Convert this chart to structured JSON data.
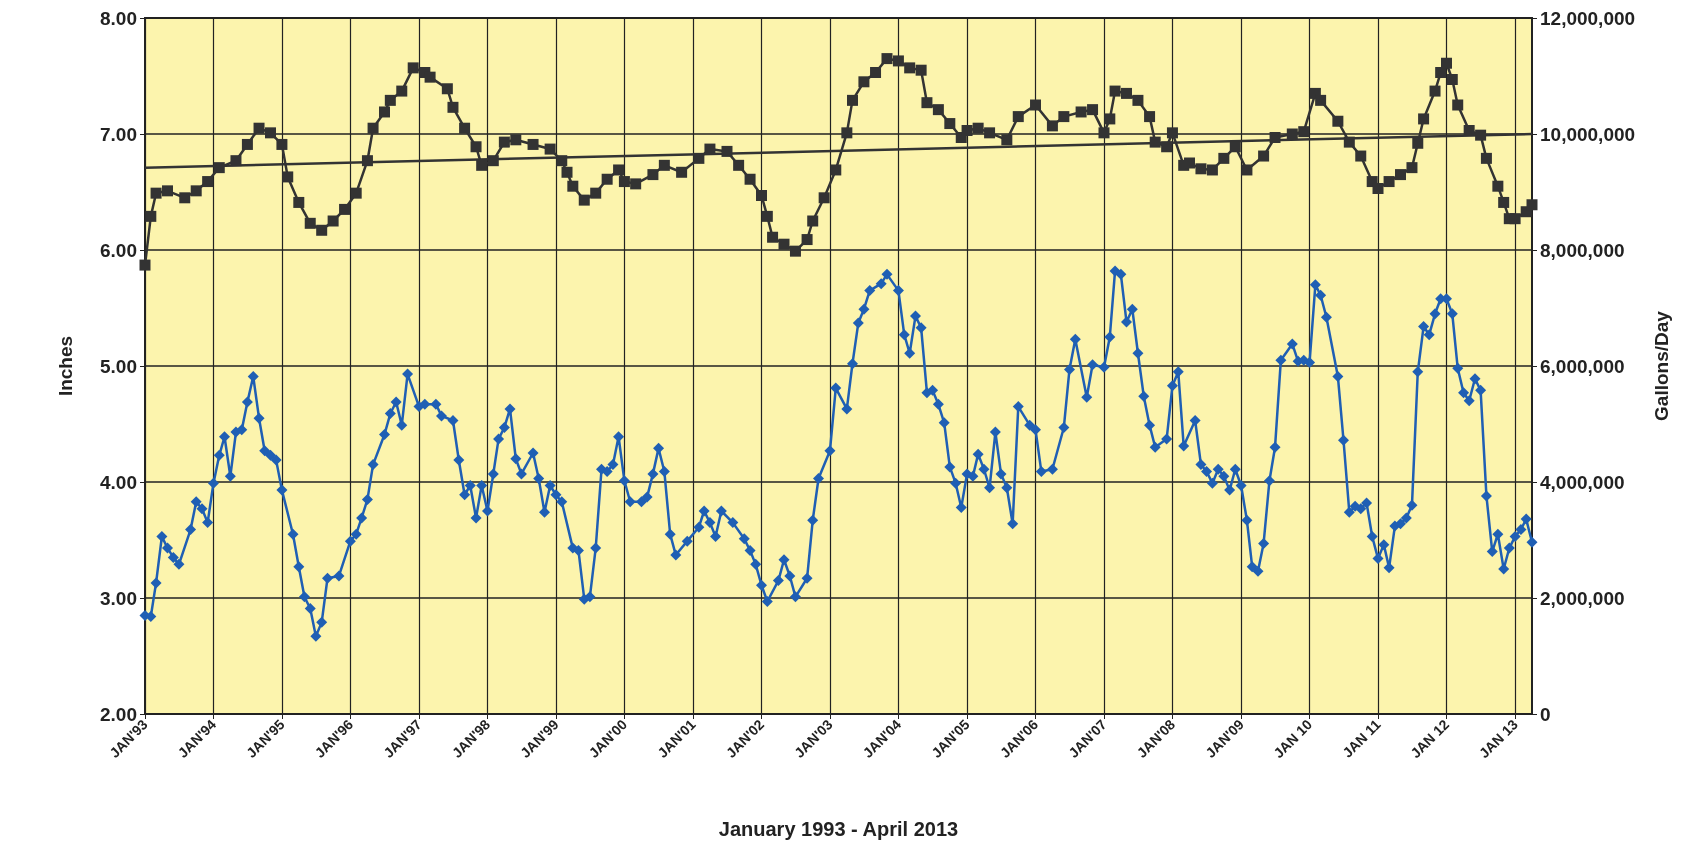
{
  "chart_data": {
    "type": "line",
    "xlabel": "January 1993 - April 2013",
    "ylabel": "Inches",
    "y2label": "Gallons/Day",
    "xlim": [
      "1993-01",
      "2013-04"
    ],
    "xticks": [
      {
        "value": "1993-01",
        "label": "JAN'93"
      },
      {
        "value": "1994-01",
        "label": "JAN'94"
      },
      {
        "value": "1995-01",
        "label": "JAN'95"
      },
      {
        "value": "1996-01",
        "label": "JAN'96"
      },
      {
        "value": "1997-01",
        "label": "JAN'97"
      },
      {
        "value": "1998-01",
        "label": "JAN'98"
      },
      {
        "value": "1999-01",
        "label": "JAN'99"
      },
      {
        "value": "2000-01",
        "label": "JAN'00"
      },
      {
        "value": "2001-01",
        "label": "JAN'01"
      },
      {
        "value": "2002-01",
        "label": "JAN'02"
      },
      {
        "value": "2003-01",
        "label": "JAN'03"
      },
      {
        "value": "2004-01",
        "label": "JAN'04"
      },
      {
        "value": "2005-01",
        "label": "JAN'05"
      },
      {
        "value": "2006-01",
        "label": "JAN'06"
      },
      {
        "value": "2007-01",
        "label": "JAN'07"
      },
      {
        "value": "2008-01",
        "label": "JAN'08"
      },
      {
        "value": "2009-01",
        "label": "JAN'09"
      },
      {
        "value": "2010-01",
        "label": "JAN 10"
      },
      {
        "value": "2011-01",
        "label": "JAN 11"
      },
      {
        "value": "2012-01",
        "label": "JAN 12"
      },
      {
        "value": "2013-01",
        "label": "JAN 13"
      }
    ],
    "ylim": [
      2,
      8
    ],
    "yticks": [
      {
        "value": 2,
        "label": "2.00"
      },
      {
        "value": 3,
        "label": "3.00"
      },
      {
        "value": 4,
        "label": "4.00"
      },
      {
        "value": 5,
        "label": "5.00"
      },
      {
        "value": 6,
        "label": "6.00"
      },
      {
        "value": 7,
        "label": "7.00"
      },
      {
        "value": 8,
        "label": "8.00"
      }
    ],
    "y2lim": [
      0,
      12000000
    ],
    "y2ticks": [
      0,
      {
        "value": 2000000,
        "label": "2,000,000"
      },
      {
        "value": 4000000,
        "label": "4,000,000"
      },
      {
        "value": 6000000,
        "label": "6,000,000"
      },
      {
        "value": 8000000,
        "label": "8,000,000"
      },
      {
        "value": 10000000,
        "label": "10,000,000"
      },
      {
        "value": 12000000,
        "label": "12,000,000"
      }
    ],
    "grid": true,
    "line_style": "solid",
    "series": [
      {
        "color": "#333333",
        "axis": "y2",
        "marker": "square",
        "x": [
          "1993-01",
          "1993-02",
          "1993-03",
          "1993-05",
          "1993-08",
          "1993-10",
          "1993-12",
          "1994-02",
          "1994-05",
          "1994-07",
          "1994-09",
          "1994-11",
          "1995-01",
          "1995-02",
          "1995-04",
          "1995-06",
          "1995-08",
          "1995-10",
          "1995-12",
          "1996-02",
          "1996-04",
          "1996-05",
          "1996-07",
          "1996-08",
          "1996-10",
          "1996-12",
          "1997-02",
          "1997-03",
          "1997-06",
          "1997-07",
          "1997-09",
          "1997-11",
          "1997-12",
          "1998-02",
          "1998-04",
          "1998-06",
          "1998-09",
          "1998-12",
          "1999-02",
          "1999-03",
          "1999-04",
          "1999-06",
          "1999-08",
          "1999-10",
          "1999-12",
          "2000-01",
          "2000-03",
          "2000-06",
          "2000-08",
          "2000-11",
          "2001-02",
          "2001-04",
          "2001-07",
          "2001-09",
          "2001-11",
          "2002-01",
          "2002-02",
          "2002-03",
          "2002-05",
          "2002-07",
          "2002-09",
          "2002-10",
          "2002-12",
          "2003-02",
          "2003-04",
          "2003-05",
          "2003-07",
          "2003-09",
          "2003-11",
          "2004-01",
          "2004-03",
          "2004-05",
          "2004-06",
          "2004-08",
          "2004-10",
          "2004-12",
          "2005-01",
          "2005-03",
          "2005-05",
          "2005-08",
          "2005-10",
          "2006-01",
          "2006-04",
          "2006-06",
          "2006-09",
          "2006-11",
          "2007-01",
          "2007-02",
          "2007-03",
          "2007-05",
          "2007-07",
          "2007-09",
          "2007-10",
          "2007-12",
          "2008-01",
          "2008-03",
          "2008-04",
          "2008-06",
          "2008-08",
          "2008-10",
          "2008-12",
          "2009-02",
          "2009-05",
          "2009-07",
          "2009-10",
          "2009-12",
          "2010-02",
          "2010-03",
          "2010-06",
          "2010-08",
          "2010-10",
          "2010-12",
          "2011-01",
          "2011-03",
          "2011-05",
          "2011-07",
          "2011-08",
          "2011-09",
          "2011-11",
          "2011-12",
          "2012-01",
          "2012-02",
          "2012-03",
          "2012-05",
          "2012-07",
          "2012-08",
          "2012-10",
          "2012-11",
          "2012-12",
          "2013-01",
          "2013-03",
          "2013-04"
        ],
        "values": [
          7740000,
          8580000,
          8980000,
          9020000,
          8900000,
          9020000,
          9180000,
          9420000,
          9540000,
          9820000,
          10100000,
          10020000,
          9820000,
          9260000,
          8820000,
          8460000,
          8340000,
          8500000,
          8700000,
          8980000,
          9540000,
          10100000,
          10380000,
          10580000,
          10740000,
          11140000,
          11060000,
          10980000,
          10780000,
          10460000,
          10100000,
          9780000,
          9460000,
          9540000,
          9860000,
          9900000,
          9820000,
          9740000,
          9540000,
          9340000,
          9100000,
          8860000,
          8980000,
          9220000,
          9380000,
          9180000,
          9140000,
          9300000,
          9460000,
          9340000,
          9580000,
          9740000,
          9700000,
          9460000,
          9220000,
          8940000,
          8580000,
          8220000,
          8100000,
          7980000,
          8180000,
          8500000,
          8900000,
          9380000,
          10020000,
          10580000,
          10900000,
          11060000,
          11300000,
          11260000,
          11140000,
          11100000,
          10540000,
          10420000,
          10180000,
          9940000,
          10060000,
          10100000,
          10020000,
          9900000,
          10300000,
          10500000,
          10140000,
          10300000,
          10380000,
          10420000,
          10020000,
          10260000,
          10740000,
          10700000,
          10580000,
          10300000,
          9860000,
          9780000,
          10020000,
          9460000,
          9500000,
          9400000,
          9380000,
          9580000,
          9780000,
          9380000,
          9620000,
          9940000,
          10000000,
          10040000,
          10700000,
          10580000,
          10220000,
          9860000,
          9620000,
          9180000,
          9060000,
          9180000,
          9300000,
          9420000,
          9840000,
          10260000,
          10740000,
          11060000,
          11220000,
          10940000,
          10500000,
          10060000,
          9980000,
          9580000,
          9100000,
          8820000,
          8540000,
          8540000,
          8660000,
          8780000
        ]
      },
      {
        "type": "line",
        "color": "#333333",
        "axis": "y2",
        "marker": "none",
        "x": [
          "1993-01",
          "2013-04"
        ],
        "values": [
          9420000,
          10000000
        ]
      },
      {
        "color": "#1f5fb4",
        "marker": "diamond",
        "x": [
          "1993-01",
          "1993-02",
          "1993-03",
          "1993-04",
          "1993-05",
          "1993-06",
          "1993-07",
          "1993-09",
          "1993-10",
          "1993-11",
          "1993-12",
          "1994-01",
          "1994-02",
          "1994-03",
          "1994-04",
          "1994-05",
          "1994-06",
          "1994-07",
          "1994-08",
          "1994-09",
          "1994-10",
          "1994-11",
          "1994-12",
          "1995-01",
          "1995-03",
          "1995-04",
          "1995-05",
          "1995-06",
          "1995-07",
          "1995-08",
          "1995-09",
          "1995-11",
          "1996-01",
          "1996-02",
          "1996-03",
          "1996-04",
          "1996-05",
          "1996-07",
          "1996-08",
          "1996-09",
          "1996-10",
          "1996-11",
          "1997-01",
          "1997-02",
          "1997-04",
          "1997-05",
          "1997-07",
          "1997-08",
          "1997-09",
          "1997-10",
          "1997-11",
          "1997-12",
          "1998-01",
          "1998-02",
          "1998-03",
          "1998-04",
          "1998-05",
          "1998-06",
          "1998-07",
          "1998-09",
          "1998-10",
          "1998-11",
          "1998-12",
          "1999-01",
          "1999-02",
          "1999-04",
          "1999-05",
          "1999-06",
          "1999-07",
          "1999-08",
          "1999-09",
          "1999-10",
          "1999-11",
          "1999-12",
          "2000-01",
          "2000-02",
          "2000-04",
          "2000-05",
          "2000-06",
          "2000-07",
          "2000-08",
          "2000-09",
          "2000-10",
          "2000-12",
          "2001-02",
          "2001-03",
          "2001-04",
          "2001-05",
          "2001-06",
          "2001-08",
          "2001-10",
          "2001-11",
          "2001-12",
          "2002-01",
          "2002-02",
          "2002-04",
          "2002-05",
          "2002-06",
          "2002-07",
          "2002-09",
          "2002-10",
          "2002-11",
          "2003-01",
          "2003-02",
          "2003-04",
          "2003-05",
          "2003-06",
          "2003-07",
          "2003-08",
          "2003-10",
          "2003-11",
          "2004-01",
          "2004-02",
          "2004-03",
          "2004-04",
          "2004-05",
          "2004-06",
          "2004-07",
          "2004-08",
          "2004-09",
          "2004-10",
          "2004-11",
          "2004-12",
          "2005-01",
          "2005-02",
          "2005-03",
          "2005-04",
          "2005-05",
          "2005-06",
          "2005-07",
          "2005-08",
          "2005-09",
          "2005-10",
          "2005-12",
          "2006-01",
          "2006-02",
          "2006-04",
          "2006-06",
          "2006-07",
          "2006-08",
          "2006-10",
          "2006-11",
          "2007-01",
          "2007-02",
          "2007-03",
          "2007-04",
          "2007-05",
          "2007-06",
          "2007-07",
          "2007-08",
          "2007-09",
          "2007-10",
          "2007-12",
          "2008-01",
          "2008-02",
          "2008-03",
          "2008-05",
          "2008-06",
          "2008-07",
          "2008-08",
          "2008-09",
          "2008-10",
          "2008-11",
          "2008-12",
          "2009-01",
          "2009-02",
          "2009-03",
          "2009-04",
          "2009-05",
          "2009-06",
          "2009-07",
          "2009-08",
          "2009-10",
          "2009-11",
          "2009-12",
          "2010-01",
          "2010-02",
          "2010-03",
          "2010-04",
          "2010-06",
          "2010-07",
          "2010-08",
          "2010-09",
          "2010-10",
          "2010-11",
          "2010-12",
          "2011-01",
          "2011-02",
          "2011-03",
          "2011-04",
          "2011-05",
          "2011-06",
          "2011-07",
          "2011-08",
          "2011-09",
          "2011-10",
          "2011-11",
          "2011-12",
          "2012-01",
          "2012-02",
          "2012-03",
          "2012-04",
          "2012-05",
          "2012-06",
          "2012-07",
          "2012-08",
          "2012-09",
          "2012-10",
          "2012-11",
          "2012-12",
          "2013-01",
          "2013-02",
          "2013-03",
          "2013-04"
        ],
        "values": [
          2.85,
          2.84,
          3.13,
          3.53,
          3.43,
          3.35,
          3.29,
          3.59,
          3.83,
          3.77,
          3.65,
          3.99,
          4.23,
          4.39,
          4.05,
          4.43,
          4.45,
          4.69,
          4.91,
          4.55,
          4.27,
          4.23,
          4.19,
          3.93,
          3.55,
          3.27,
          3.01,
          2.91,
          2.67,
          2.79,
          3.17,
          3.19,
          3.49,
          3.55,
          3.69,
          3.85,
          4.15,
          4.41,
          4.59,
          4.69,
          4.49,
          4.93,
          4.65,
          4.67,
          4.67,
          4.57,
          4.53,
          4.19,
          3.89,
          3.97,
          3.69,
          3.97,
          3.75,
          4.07,
          4.37,
          4.47,
          4.63,
          4.2,
          4.07,
          4.25,
          4.03,
          3.74,
          3.97,
          3.89,
          3.83,
          3.43,
          3.41,
          2.99,
          3.01,
          3.43,
          4.11,
          4.09,
          4.15,
          4.39,
          4.01,
          3.83,
          3.83,
          3.87,
          4.07,
          4.29,
          4.09,
          3.55,
          3.37,
          3.49,
          3.61,
          3.75,
          3.65,
          3.53,
          3.75,
          3.65,
          3.51,
          3.41,
          3.29,
          3.11,
          2.97,
          3.15,
          3.33,
          3.19,
          3.01,
          3.17,
          3.67,
          4.03,
          4.27,
          4.81,
          4.63,
          5.02,
          5.37,
          5.49,
          5.65,
          5.71,
          5.79,
          5.65,
          5.27,
          5.11,
          5.43,
          5.33,
          4.77,
          4.79,
          4.67,
          4.51,
          4.13,
          3.99,
          3.78,
          4.07,
          4.05,
          4.24,
          4.11,
          3.95,
          4.43,
          4.07,
          3.95,
          3.64,
          4.65,
          4.49,
          4.45,
          4.09,
          4.11,
          4.47,
          4.97,
          5.23,
          4.73,
          5.01,
          4.99,
          5.25,
          5.82,
          5.79,
          5.38,
          5.49,
          5.11,
          4.74,
          4.49,
          4.3,
          4.37,
          4.83,
          4.95,
          4.31,
          4.53,
          4.15,
          4.09,
          3.99,
          4.11,
          4.05,
          3.93,
          4.11,
          3.97,
          3.67,
          3.27,
          3.23,
          3.47,
          4.01,
          4.3,
          5.05,
          5.19,
          5.04,
          5.05,
          5.03,
          5.7,
          5.61,
          5.42,
          4.91,
          4.36,
          3.74,
          3.79,
          3.77,
          3.82,
          3.53,
          3.34,
          3.46,
          3.26,
          3.62,
          3.64,
          3.69,
          3.8,
          4.95,
          5.34,
          5.27,
          5.45,
          5.58,
          5.58,
          5.45,
          4.98,
          4.77,
          4.7,
          4.89,
          4.79,
          3.88,
          3.4,
          3.55,
          3.25,
          3.43,
          3.53,
          3.59,
          3.68,
          3.48
        ]
      }
    ]
  }
}
